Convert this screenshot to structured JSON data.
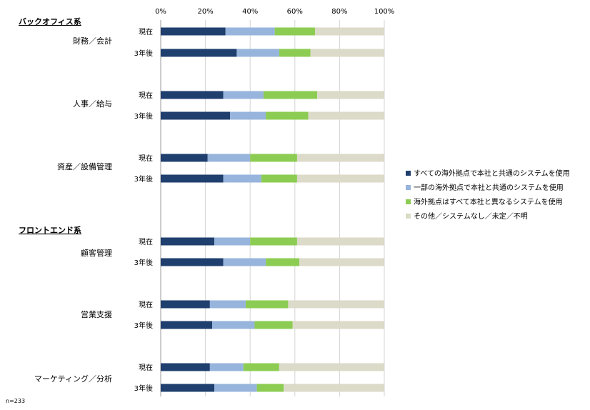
{
  "chart_data": {
    "type": "bar",
    "orientation": "horizontal",
    "stacked": "percent",
    "xlim": [
      0,
      100
    ],
    "x_ticks": [
      "0%",
      "20%",
      "40%",
      "60%",
      "80%",
      "100%"
    ],
    "sections": [
      {
        "title": "バックオフィス系",
        "groups": [
          0,
          1,
          2
        ]
      },
      {
        "title": "フロントエンド系",
        "groups": [
          3,
          4,
          5
        ]
      }
    ],
    "groups": [
      {
        "name": "財務／会計",
        "rows": [
          {
            "label": "現在",
            "values": [
              29,
              22,
              18,
              31
            ]
          },
          {
            "label": "3年後",
            "values": [
              34,
              19,
              14,
              33
            ]
          }
        ]
      },
      {
        "name": "人事／給与",
        "rows": [
          {
            "label": "現在",
            "values": [
              28,
              18,
              24,
              30
            ]
          },
          {
            "label": "3年後",
            "values": [
              31,
              16,
              19,
              34
            ]
          }
        ]
      },
      {
        "name": "資産／設備管理",
        "rows": [
          {
            "label": "現在",
            "values": [
              21,
              19,
              21,
              39
            ]
          },
          {
            "label": "3年後",
            "values": [
              28,
              17,
              16,
              39
            ]
          }
        ]
      },
      {
        "name": "顧客管理",
        "rows": [
          {
            "label": "現在",
            "values": [
              24,
              16,
              21,
              39
            ]
          },
          {
            "label": "3年後",
            "values": [
              28,
              19,
              15,
              38
            ]
          }
        ]
      },
      {
        "name": "営業支援",
        "rows": [
          {
            "label": "現在",
            "values": [
              22,
              16,
              19,
              43
            ]
          },
          {
            "label": "3年後",
            "values": [
              23,
              19,
              17,
              41
            ]
          }
        ]
      },
      {
        "name": "マーケティング／分析",
        "rows": [
          {
            "label": "現在",
            "values": [
              22,
              15,
              16,
              47
            ]
          },
          {
            "label": "3年後",
            "values": [
              24,
              19,
              12,
              45
            ]
          }
        ]
      }
    ],
    "series": [
      {
        "name": "すべての海外拠点で本社と共通のシステムを使用",
        "color": "#1f3f6e"
      },
      {
        "name": "一部の海外拠点で本社と共通のシステムを使用",
        "color": "#97b4dc"
      },
      {
        "name": "海外拠点はすべて本社と異なるシステムを使用",
        "color": "#8ccc52"
      },
      {
        "name": "その他／システムなし／未定／不明",
        "color": "#dcdac8"
      }
    ],
    "legend_position": "right",
    "gridlines": true,
    "note": "n=233"
  }
}
